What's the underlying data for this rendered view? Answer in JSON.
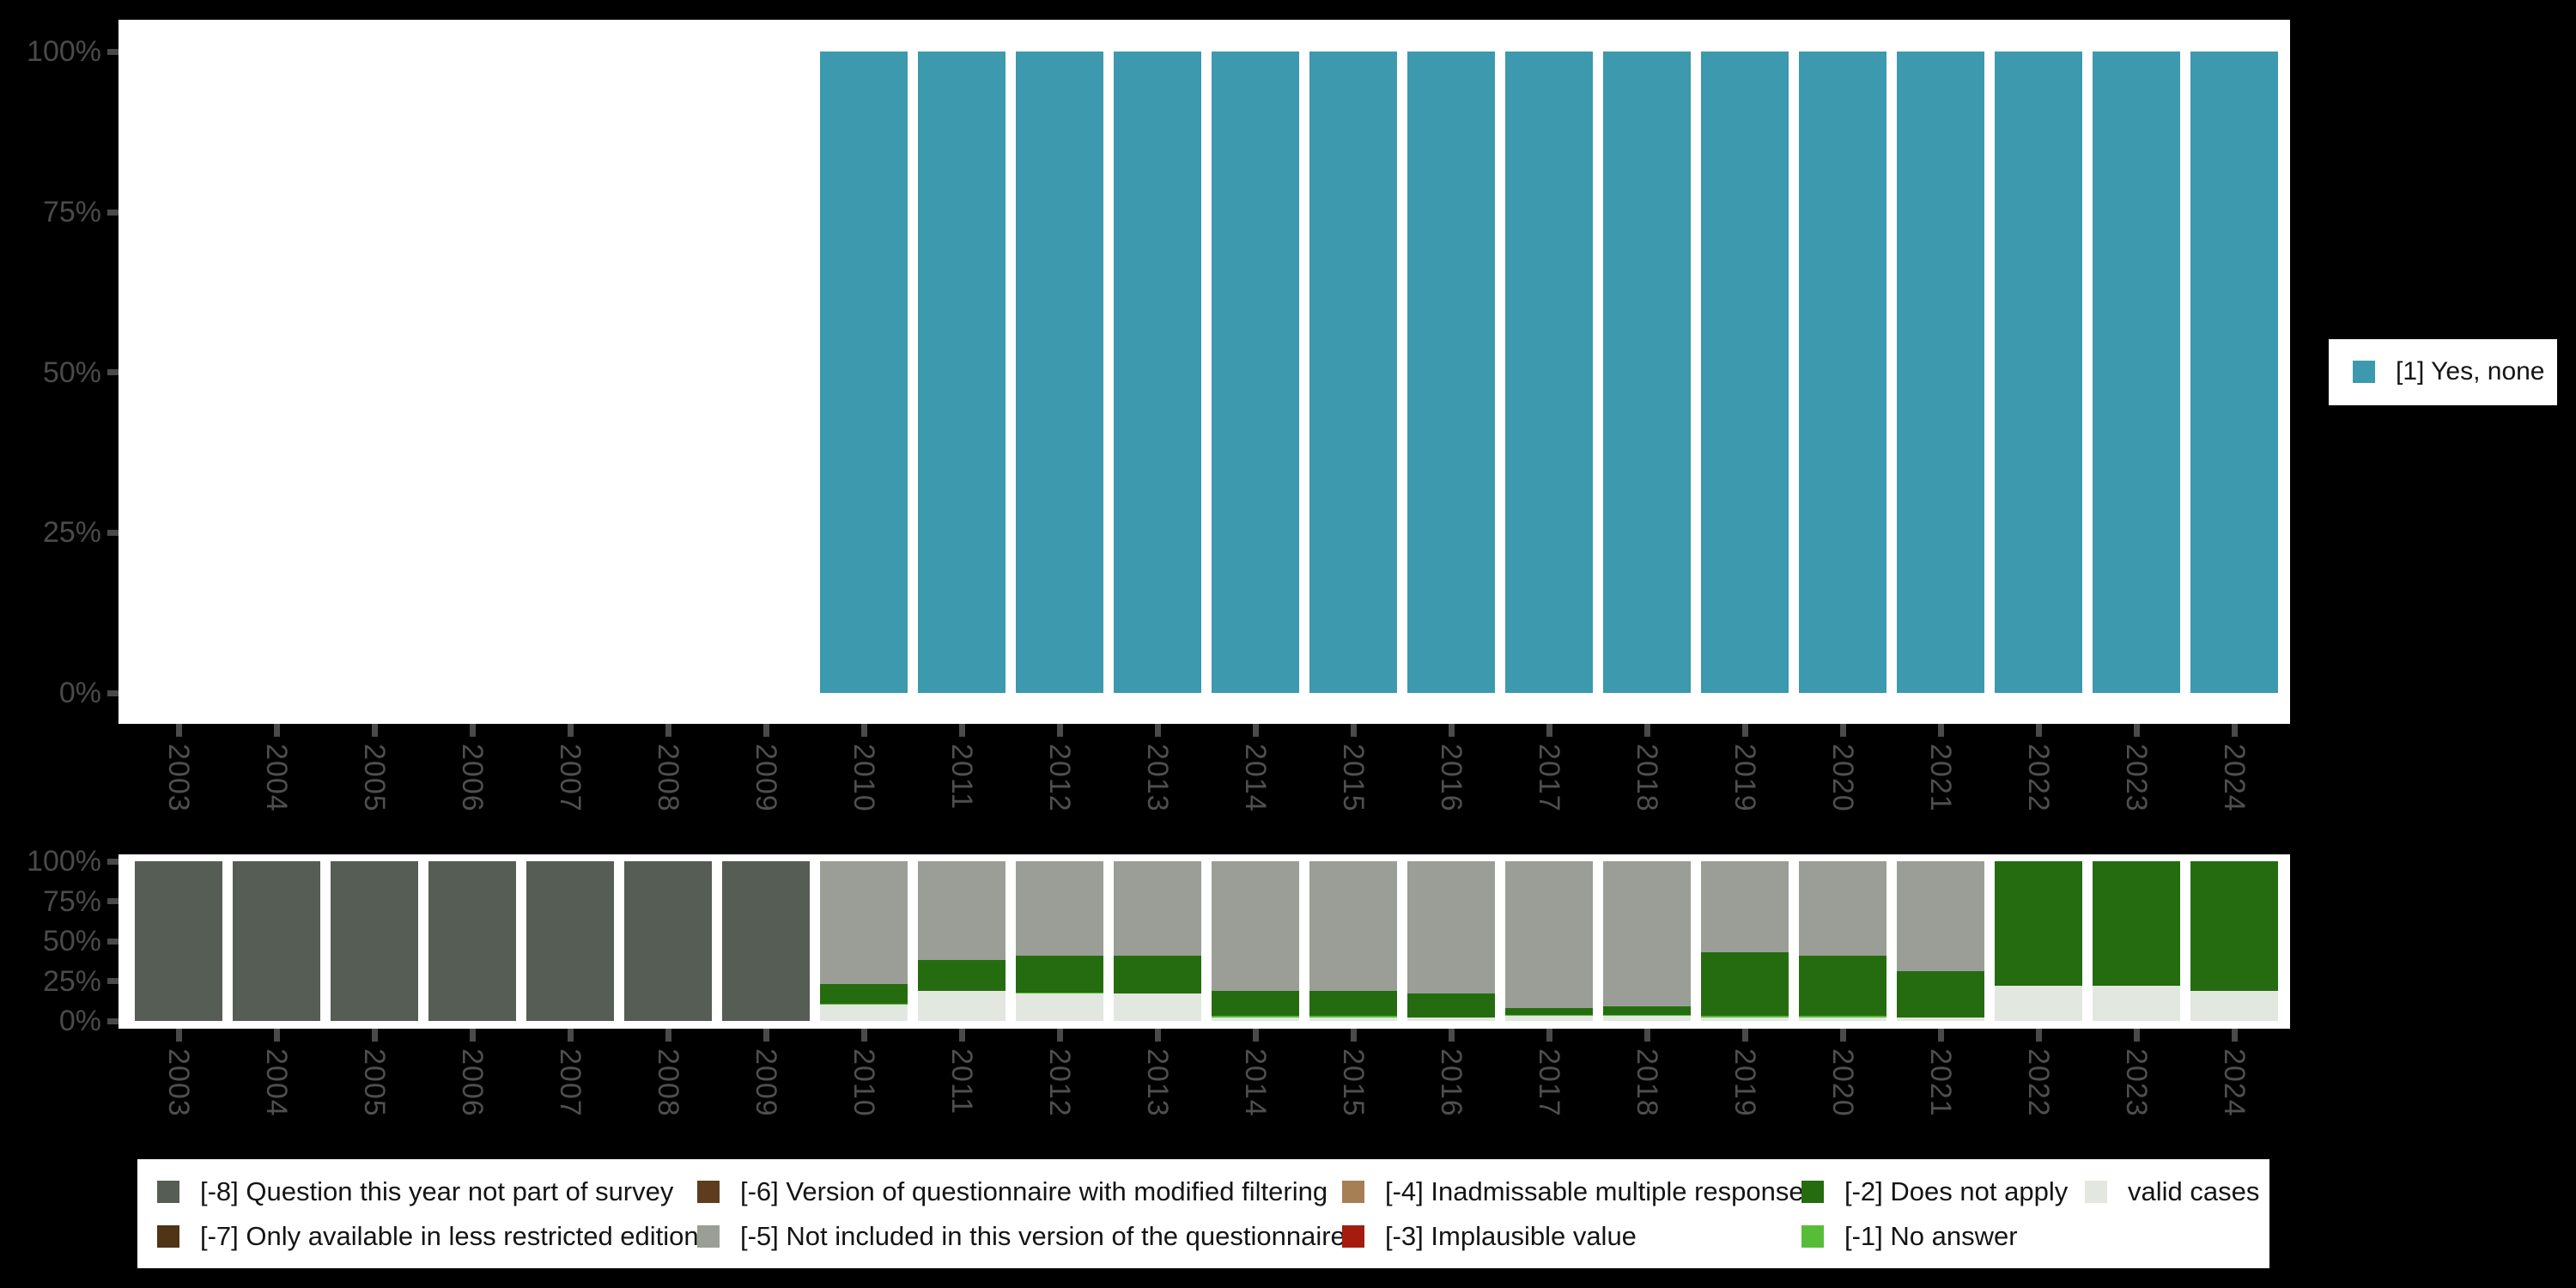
{
  "colors": {
    "background": "#000000",
    "panel": "#ffffff",
    "axis_text": "#4a4a4a",
    "legend_text": "#141414",
    "cat_1": "#3c99ae",
    "m8": "#565d54",
    "m7": "#4f3418",
    "m6": "#5d3d1e",
    "m5": "#9a9e96",
    "m4": "#a67f55",
    "m3": "#a51b10",
    "m2": "#256c10",
    "m1": "#57bd38",
    "valid": "#e2e7e0"
  },
  "years": [
    "2003",
    "2004",
    "2005",
    "2006",
    "2007",
    "2008",
    "2009",
    "2010",
    "2011",
    "2012",
    "2013",
    "2014",
    "2015",
    "2016",
    "2017",
    "2018",
    "2019",
    "2020",
    "2021",
    "2022",
    "2023",
    "2024"
  ],
  "chart_data": [
    {
      "type": "bar",
      "title": "",
      "xlabel": "",
      "ylabel": "",
      "ylim": [
        0,
        100
      ],
      "grid": false,
      "legend_position": "right",
      "x": [
        "2003",
        "2004",
        "2005",
        "2006",
        "2007",
        "2008",
        "2009",
        "2010",
        "2011",
        "2012",
        "2013",
        "2014",
        "2015",
        "2016",
        "2017",
        "2018",
        "2019",
        "2020",
        "2021",
        "2022",
        "2023",
        "2024"
      ],
      "yticks": [
        "0%",
        "25%",
        "50%",
        "75%",
        "100%"
      ],
      "series": [
        {
          "name": "[1] Yes, none",
          "color_key": "cat_1",
          "values": [
            null,
            null,
            null,
            null,
            null,
            null,
            null,
            100,
            100,
            100,
            100,
            100,
            100,
            100,
            100,
            100,
            100,
            100,
            100,
            100,
            100,
            100
          ]
        }
      ]
    },
    {
      "type": "bar",
      "subtype": "stacked-missing-values",
      "title": "",
      "xlabel": "",
      "ylabel": "",
      "ylim": [
        0,
        100
      ],
      "grid": false,
      "legend_position": "bottom",
      "x": [
        "2003",
        "2004",
        "2005",
        "2006",
        "2007",
        "2008",
        "2009",
        "2010",
        "2011",
        "2012",
        "2013",
        "2014",
        "2015",
        "2016",
        "2017",
        "2018",
        "2019",
        "2020",
        "2021",
        "2022",
        "2023",
        "2024"
      ],
      "yticks": [
        "0%",
        "25%",
        "50%",
        "75%",
        "100%"
      ],
      "series": [
        {
          "name": "[-8] Question this year not part of survey",
          "color_key": "m8",
          "values": [
            100,
            100,
            100,
            100,
            100,
            100,
            100,
            0,
            0,
            0,
            0,
            0,
            0,
            0,
            0,
            0,
            0,
            0,
            0,
            0,
            0,
            0
          ]
        },
        {
          "name": "[-5] Not included in this version of the questionnaire",
          "color_key": "m5",
          "values": [
            0,
            0,
            0,
            0,
            0,
            0,
            0,
            77,
            62,
            59,
            59,
            81,
            81,
            83,
            92,
            91,
            57,
            59,
            69,
            0,
            0,
            0
          ]
        },
        {
          "name": "[-2] Does not apply",
          "color_key": "m2",
          "values": [
            0,
            0,
            0,
            0,
            0,
            0,
            0,
            12,
            19,
            23,
            24,
            16,
            16,
            15,
            4,
            5,
            40,
            38,
            29,
            78,
            78,
            81
          ]
        },
        {
          "name": "[-1] No answer",
          "color_key": "m1",
          "values": [
            0,
            0,
            0,
            0,
            0,
            0,
            0,
            1,
            0,
            1,
            0,
            1,
            1,
            0,
            1,
            1,
            1,
            1,
            0,
            0,
            0,
            0
          ]
        },
        {
          "name": "valid cases",
          "color_key": "valid",
          "values": [
            0,
            0,
            0,
            0,
            0,
            0,
            0,
            10,
            19,
            17,
            17,
            2,
            2,
            2,
            3,
            3,
            2,
            2,
            2,
            22,
            22,
            19
          ]
        }
      ]
    }
  ],
  "legend_right": {
    "items": [
      {
        "label": "[1] Yes, none",
        "color_key": "cat_1"
      }
    ]
  },
  "legend_bottom": {
    "columns": [
      {
        "items": [
          {
            "label": "[-8] Question this year not part of survey",
            "color_key": "m8"
          },
          {
            "label": "[-7] Only available in less restricted edition",
            "color_key": "m7"
          }
        ]
      },
      {
        "items": [
          {
            "label": "[-6] Version of questionnaire with modified filtering",
            "color_key": "m6"
          },
          {
            "label": "[-5] Not included in this version of the questionnaire",
            "color_key": "m5"
          }
        ]
      },
      {
        "items": [
          {
            "label": "[-4] Inadmissable multiple response",
            "color_key": "m4"
          },
          {
            "label": "[-3] Implausible value",
            "color_key": "m3"
          }
        ]
      },
      {
        "items": [
          {
            "label": "[-2] Does not apply",
            "color_key": "m2"
          },
          {
            "label": "[-1] No answer",
            "color_key": "m1"
          }
        ]
      },
      {
        "items": [
          {
            "label": "valid cases",
            "color_key": "valid"
          }
        ]
      }
    ]
  }
}
